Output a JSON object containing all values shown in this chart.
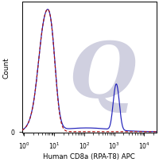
{
  "xlabel": "Human CD8a (RPA-T8) APC",
  "ylabel": "Count",
  "solid_line_color": "#2020bb",
  "dashed_line_color": "#aa1111",
  "watermark_color": "#d0d0e0",
  "xticks": [
    1,
    10,
    100,
    1000,
    10000
  ],
  "xlim": [
    0.85,
    25000
  ],
  "ylim": [
    -0.01,
    1.06
  ]
}
